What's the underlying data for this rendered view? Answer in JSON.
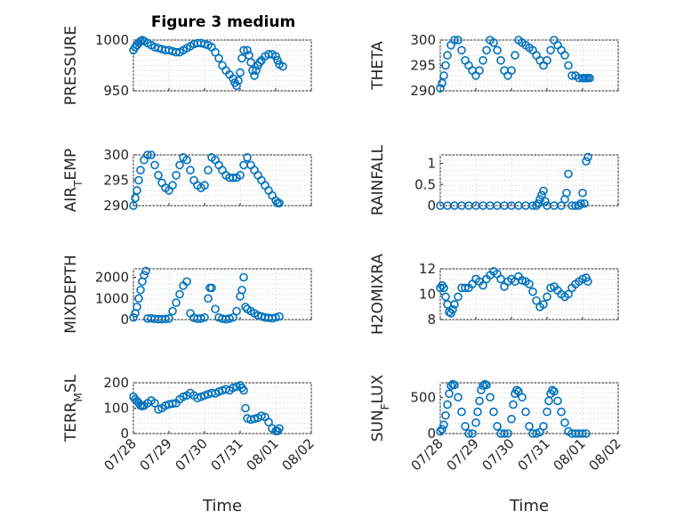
{
  "figure": {
    "title": "Figure 3 medium"
  },
  "chart_data": [
    {
      "type": "scatter",
      "ylabel": "PRESSURE",
      "ylim": [
        950,
        1000
      ],
      "yticks": [
        950,
        1000
      ],
      "xlim": [
        0,
        5
      ],
      "xticks": [
        "07/28",
        "07/29",
        "07/30",
        "07/31",
        "08/01",
        "08/02"
      ],
      "show_xticklabels": false,
      "xlabel": "",
      "x": [
        0,
        0.05,
        0.1,
        0.15,
        0.2,
        0.25,
        0.3,
        0.4,
        0.5,
        0.6,
        0.7,
        0.8,
        0.9,
        1,
        1.1,
        1.2,
        1.3,
        1.4,
        1.5,
        1.6,
        1.7,
        1.8,
        1.9,
        2,
        2.1,
        2.2,
        2.3,
        2.4,
        2.5,
        2.6,
        2.7,
        2.8,
        2.85,
        2.9,
        2.95,
        3,
        3.05,
        3.1,
        3.2,
        3.25,
        3.3,
        3.35,
        3.4,
        3.45,
        3.5,
        3.55,
        3.6,
        3.7,
        3.8,
        3.9,
        4,
        4.05,
        4.1,
        4.2
      ],
      "values": [
        990,
        993,
        995,
        997,
        999,
        1000,
        999,
        997,
        995,
        993,
        992,
        991,
        990,
        990,
        989,
        988,
        988,
        990,
        992,
        994,
        996,
        997,
        997,
        996,
        995,
        993,
        988,
        982,
        975,
        970,
        966,
        962,
        958,
        955,
        960,
        968,
        982,
        990,
        990,
        985,
        978,
        970,
        965,
        970,
        975,
        978,
        980,
        984,
        986,
        986,
        984,
        980,
        976,
        974
      ]
    },
    {
      "type": "scatter",
      "ylabel": "THETA",
      "ylim": [
        290,
        300
      ],
      "yticks": [
        290,
        295,
        300
      ],
      "xlim": [
        0,
        5
      ],
      "xticks": [
        "07/28",
        "07/29",
        "07/30",
        "07/31",
        "08/01",
        "08/02"
      ],
      "show_xticklabels": false,
      "xlabel": "",
      "x": [
        0,
        0.05,
        0.1,
        0.15,
        0.2,
        0.3,
        0.4,
        0.5,
        0.6,
        0.7,
        0.8,
        0.9,
        1,
        1.1,
        1.2,
        1.3,
        1.4,
        1.5,
        1.6,
        1.7,
        1.8,
        1.9,
        2,
        2.1,
        2.2,
        2.3,
        2.4,
        2.5,
        2.6,
        2.7,
        2.8,
        2.9,
        3,
        3.1,
        3.2,
        3.3,
        3.4,
        3.5,
        3.6,
        3.7,
        3.8,
        3.9,
        4,
        4.05,
        4.1,
        4.15,
        4.2
      ],
      "values": [
        290.5,
        291.5,
        293,
        295,
        297,
        299,
        300,
        300,
        298,
        296,
        295,
        294,
        293,
        294,
        296,
        298,
        300,
        299.5,
        298,
        296,
        294,
        293,
        294,
        297,
        300,
        299.5,
        299,
        298.5,
        298,
        297,
        296,
        295,
        296,
        298,
        300,
        299,
        298,
        297,
        295,
        293,
        293,
        292.5,
        292.5,
        292.5,
        292.5,
        292.5,
        292.5
      ]
    },
    {
      "type": "scatter",
      "ylabel": "AIR_TEMP",
      "ylim": [
        290,
        300
      ],
      "yticks": [
        290,
        295,
        300
      ],
      "xlim": [
        0,
        5
      ],
      "xticks": [
        "07/28",
        "07/29",
        "07/30",
        "07/31",
        "08/01",
        "08/02"
      ],
      "show_xticklabels": false,
      "xlabel": "",
      "x": [
        0,
        0.05,
        0.1,
        0.15,
        0.2,
        0.3,
        0.4,
        0.5,
        0.6,
        0.7,
        0.8,
        0.9,
        1,
        1.1,
        1.2,
        1.3,
        1.4,
        1.5,
        1.6,
        1.7,
        1.8,
        1.9,
        2,
        2.1,
        2.2,
        2.3,
        2.4,
        2.5,
        2.6,
        2.7,
        2.8,
        2.9,
        3,
        3.1,
        3.2,
        3.3,
        3.4,
        3.5,
        3.6,
        3.7,
        3.8,
        3.9,
        4,
        4.05,
        4.1
      ],
      "values": [
        290,
        291.5,
        293,
        295,
        297,
        299,
        300,
        300,
        298,
        296,
        294.5,
        293.5,
        293,
        294,
        296,
        298,
        299.5,
        299,
        297,
        295,
        294,
        293.5,
        294,
        297,
        299.5,
        299,
        298,
        297,
        296,
        295.5,
        295.5,
        295.5,
        296,
        298,
        299.5,
        298,
        297,
        296,
        295,
        294,
        293,
        292,
        291,
        290.5,
        290.5
      ]
    },
    {
      "type": "scatter",
      "ylabel": "RAINFALL",
      "ylim": [
        0,
        1.2
      ],
      "yticks": [
        0,
        0.5,
        1
      ],
      "xlim": [
        0,
        5
      ],
      "xticks": [
        "07/28",
        "07/29",
        "07/30",
        "07/31",
        "08/01",
        "08/02"
      ],
      "show_xticklabels": false,
      "xlabel": "",
      "x": [
        0,
        0.2,
        0.4,
        0.6,
        0.8,
        1,
        1.2,
        1.4,
        1.6,
        1.8,
        2,
        2.2,
        2.4,
        2.6,
        2.7,
        2.75,
        2.8,
        2.85,
        2.9,
        2.95,
        3,
        3.2,
        3.4,
        3.5,
        3.55,
        3.6,
        3.7,
        3.8,
        3.9,
        3.95,
        4,
        4.05,
        4.1,
        4.15
      ],
      "values": [
        0,
        0,
        0,
        0,
        0,
        0,
        0,
        0,
        0,
        0,
        0,
        0,
        0,
        0,
        0,
        0.05,
        0.15,
        0.25,
        0.35,
        0.1,
        0,
        0,
        0,
        0.15,
        0.3,
        0.75,
        0,
        0,
        0,
        0.05,
        0.3,
        0.05,
        1.05,
        1.15
      ]
    },
    {
      "type": "scatter",
      "ylabel": "MIXDEPTH",
      "ylim": [
        0,
        2400
      ],
      "yticks": [
        0,
        1000,
        2000
      ],
      "xlim": [
        0,
        5
      ],
      "xticks": [
        "07/28",
        "07/29",
        "07/30",
        "07/31",
        "08/01",
        "08/02"
      ],
      "show_xticklabels": false,
      "xlabel": "",
      "x": [
        0,
        0.05,
        0.1,
        0.15,
        0.2,
        0.25,
        0.3,
        0.35,
        0.4,
        0.5,
        0.6,
        0.7,
        0.8,
        0.9,
        1,
        1.1,
        1.2,
        1.3,
        1.4,
        1.5,
        1.6,
        1.7,
        1.8,
        1.9,
        2,
        2.1,
        2.15,
        2.2,
        2.3,
        2.4,
        2.5,
        2.6,
        2.7,
        2.8,
        2.9,
        3,
        3.05,
        3.1,
        3.15,
        3.2,
        3.3,
        3.4,
        3.5,
        3.6,
        3.7,
        3.8,
        3.9,
        4,
        4.1
      ],
      "values": [
        100,
        300,
        600,
        1000,
        1400,
        1800,
        2100,
        2300,
        50,
        60,
        30,
        20,
        20,
        30,
        50,
        400,
        800,
        1200,
        1600,
        1800,
        300,
        80,
        40,
        50,
        100,
        1000,
        1500,
        1500,
        500,
        100,
        40,
        20,
        50,
        100,
        400,
        1100,
        1400,
        2000,
        600,
        500,
        400,
        300,
        200,
        150,
        100,
        80,
        60,
        100,
        150
      ]
    },
    {
      "type": "scatter",
      "ylabel": "H2OMIXRA",
      "ylim": [
        8,
        12
      ],
      "yticks": [
        8,
        10,
        12
      ],
      "xlim": [
        0,
        5
      ],
      "xticks": [
        "07/28",
        "07/29",
        "07/30",
        "07/31",
        "08/01",
        "08/02"
      ],
      "show_xticklabels": false,
      "xlabel": "",
      "x": [
        0,
        0.05,
        0.1,
        0.15,
        0.2,
        0.25,
        0.3,
        0.35,
        0.4,
        0.5,
        0.6,
        0.7,
        0.8,
        0.9,
        1,
        1.1,
        1.2,
        1.3,
        1.4,
        1.5,
        1.6,
        1.7,
        1.8,
        1.9,
        2,
        2.1,
        2.2,
        2.3,
        2.4,
        2.5,
        2.6,
        2.7,
        2.8,
        2.9,
        3,
        3.1,
        3.2,
        3.3,
        3.4,
        3.5,
        3.6,
        3.7,
        3.8,
        3.9,
        4,
        4.1,
        4.15
      ],
      "values": [
        10.5,
        10.7,
        10.5,
        9.8,
        9.2,
        8.6,
        8.5,
        8.8,
        9.2,
        9.8,
        10.5,
        10.5,
        10.5,
        10.8,
        11.2,
        11,
        10.7,
        11.2,
        11.5,
        11.8,
        11.6,
        11.2,
        10.6,
        11,
        11.2,
        11,
        11.4,
        11.1,
        11,
        10.8,
        10.2,
        9.5,
        9,
        9.2,
        9.8,
        10.5,
        10.6,
        10.3,
        10,
        9.8,
        10,
        10.5,
        10.8,
        11,
        11.2,
        11.3,
        11
      ]
    },
    {
      "type": "scatter",
      "ylabel": "TERR_MSL",
      "ylim": [
        0,
        200
      ],
      "yticks": [
        0,
        100,
        200
      ],
      "xlim": [
        0,
        5
      ],
      "xticks": [
        "07/28",
        "07/29",
        "07/30",
        "07/31",
        "08/01",
        "08/02"
      ],
      "show_xticklabels": true,
      "xlabel": "Time",
      "x": [
        0,
        0.05,
        0.1,
        0.15,
        0.2,
        0.25,
        0.3,
        0.4,
        0.5,
        0.6,
        0.7,
        0.8,
        0.9,
        1,
        1.1,
        1.2,
        1.3,
        1.4,
        1.5,
        1.6,
        1.7,
        1.8,
        1.9,
        2,
        2.1,
        2.2,
        2.3,
        2.4,
        2.5,
        2.6,
        2.7,
        2.8,
        2.9,
        3,
        3.05,
        3.1,
        3.15,
        3.2,
        3.3,
        3.4,
        3.5,
        3.6,
        3.7,
        3.8,
        3.9,
        4,
        4.05,
        4.1
      ],
      "values": [
        145,
        135,
        128,
        120,
        110,
        108,
        110,
        120,
        130,
        120,
        95,
        100,
        110,
        115,
        118,
        120,
        135,
        145,
        150,
        160,
        150,
        140,
        145,
        150,
        155,
        160,
        158,
        165,
        170,
        175,
        170,
        180,
        185,
        190,
        180,
        170,
        100,
        60,
        55,
        58,
        62,
        70,
        65,
        45,
        20,
        10,
        10,
        20
      ]
    },
    {
      "type": "scatter",
      "ylabel": "SUN_FLUX",
      "ylim": [
        0,
        700
      ],
      "yticks": [
        0,
        500
      ],
      "xlim": [
        0,
        5
      ],
      "xticks": [
        "07/28",
        "07/29",
        "07/30",
        "07/31",
        "08/01",
        "08/02"
      ],
      "show_xticklabels": true,
      "xlabel": "Time",
      "x": [
        0,
        0.05,
        0.1,
        0.15,
        0.2,
        0.25,
        0.3,
        0.35,
        0.4,
        0.5,
        0.6,
        0.7,
        0.8,
        0.9,
        1,
        1.05,
        1.1,
        1.15,
        1.2,
        1.25,
        1.3,
        1.4,
        1.5,
        1.6,
        1.7,
        1.8,
        1.9,
        2,
        2.05,
        2.1,
        2.15,
        2.2,
        2.3,
        2.4,
        2.5,
        2.6,
        2.7,
        2.8,
        2.9,
        3,
        3.05,
        3.1,
        3.15,
        3.2,
        3.3,
        3.4,
        3.5,
        3.6,
        3.7,
        3.8,
        3.9,
        4,
        4.1
      ],
      "values": [
        30,
        60,
        120,
        250,
        400,
        550,
        660,
        680,
        670,
        500,
        300,
        100,
        0,
        0,
        150,
        300,
        450,
        600,
        660,
        680,
        670,
        500,
        300,
        100,
        0,
        0,
        0,
        200,
        400,
        550,
        600,
        580,
        500,
        300,
        100,
        0,
        0,
        20,
        100,
        300,
        450,
        550,
        600,
        580,
        450,
        300,
        150,
        30,
        0,
        0,
        0,
        0,
        0
      ]
    }
  ]
}
